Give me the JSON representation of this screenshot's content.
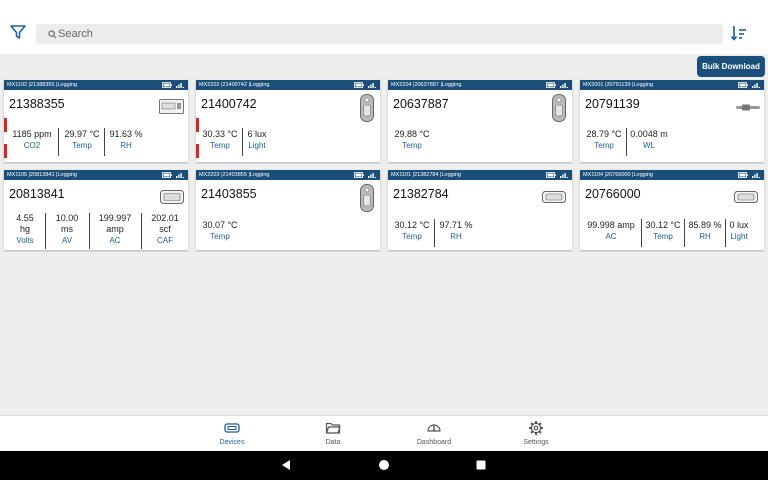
{
  "search": {
    "placeholder": "Search"
  },
  "toolbar": {
    "bulk_download_label": "Bulk Download"
  },
  "colors": {
    "header": "#1b4f7a",
    "accent": "#1b5e9a",
    "alarm": "#d62828"
  },
  "cards": [
    {
      "header": "MX1102 |21388355 |Logging",
      "serial": "21388355",
      "icon": "co2-logger-icon",
      "readings": [
        {
          "value": "1185 ppm",
          "label": "CO2"
        },
        {
          "value": "29.97 °C",
          "label": "Temp"
        },
        {
          "value": "91.63 %",
          "label": "RH"
        }
      ]
    },
    {
      "header": "MX2202 |21400742 |Logging",
      "serial": "21400742",
      "icon": "pendant-logger-icon",
      "readings": [
        {
          "value": "30.33 °C",
          "label": "Temp"
        },
        {
          "value": "6 lux",
          "label": "Light"
        }
      ]
    },
    {
      "header": "MX2204 |20637887 |Logging",
      "serial": "20637887",
      "icon": "pendant-logger-icon",
      "readings": [
        {
          "value": "29.88 °C",
          "label": "Temp"
        }
      ]
    },
    {
      "header": "MX2001 |20791139 |Logging",
      "serial": "20791139",
      "icon": "water-level-logger-icon",
      "readings": [
        {
          "value": "28.79 °C",
          "label": "Temp"
        },
        {
          "value": "0.0048 m",
          "label": "WL"
        }
      ]
    },
    {
      "header": "MX1105 |20813841 |Logging",
      "serial": "20813841",
      "icon": "analog-logger-icon",
      "readings": [
        {
          "value": "4.55",
          "unit": "hg",
          "label": "Volts"
        },
        {
          "value": "10.00",
          "unit": "ms",
          "label": "AV"
        },
        {
          "value": "199.997",
          "unit": "amp",
          "label": "AC"
        },
        {
          "value": "202.01",
          "unit": "scf",
          "label": "CAF"
        }
      ]
    },
    {
      "header": "MX2203 |21403855 |Logging",
      "serial": "21403855",
      "icon": "pendant-logger-icon",
      "readings": [
        {
          "value": "30.07 °C",
          "label": "Temp"
        }
      ]
    },
    {
      "header": "MX1101 |21382784 |Logging",
      "serial": "21382784",
      "icon": "temp-rh-logger-icon",
      "readings": [
        {
          "value": "30.12 °C",
          "label": "Temp"
        },
        {
          "value": "97.71 %",
          "label": "RH"
        }
      ]
    },
    {
      "header": "MX1104 |20766000 |Logging",
      "serial": "20766000",
      "icon": "temp-rh-logger-icon",
      "readings": [
        {
          "value": "99.998 amp",
          "label": "AC"
        },
        {
          "value": "30.12 °C",
          "label": "Temp"
        },
        {
          "value": "85.89 %",
          "label": "RH"
        },
        {
          "value": "0 lux",
          "label": "Light"
        }
      ]
    }
  ],
  "nav": [
    {
      "label": "Devices",
      "icon": "devices-icon",
      "active": true
    },
    {
      "label": "Data",
      "icon": "folder-icon",
      "active": false
    },
    {
      "label": "Dashboard",
      "icon": "dashboard-gauge-icon",
      "active": false
    },
    {
      "label": "Settings",
      "icon": "gear-icon",
      "active": false
    }
  ],
  "system_nav": [
    "back-icon",
    "home-icon",
    "recents-icon"
  ]
}
